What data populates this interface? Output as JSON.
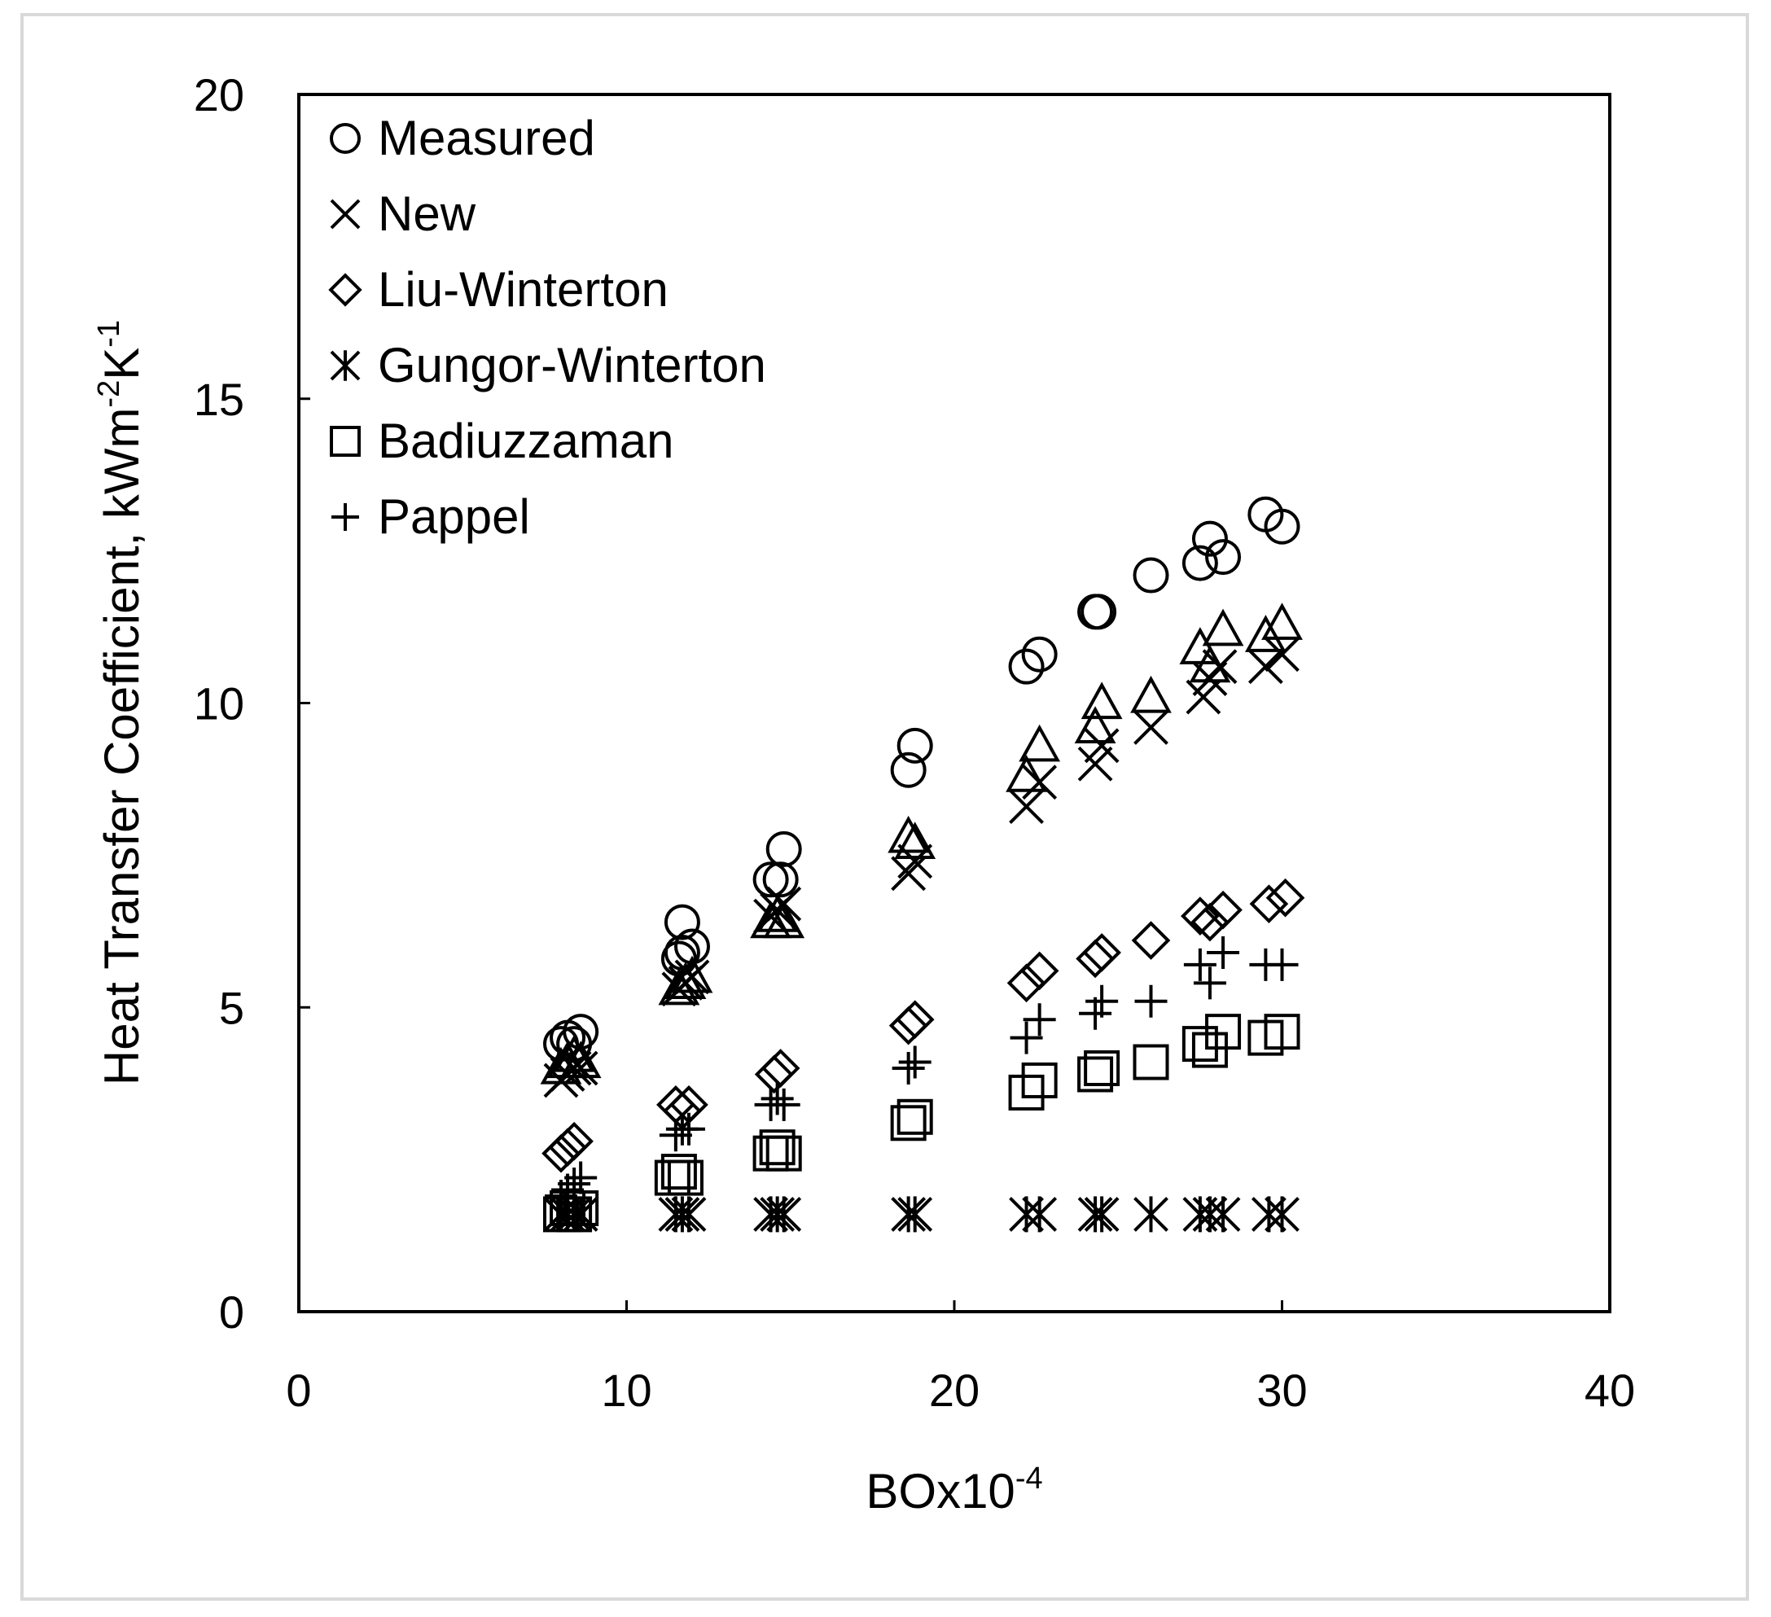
{
  "chart_data": {
    "type": "scatter",
    "title": "",
    "xlabel": "BOx10",
    "xlabel_sup": "-4",
    "ylabel": "Heat Transfer Coefficient, kWm",
    "ylabel_sup1": "-2",
    "ylabel_mid": "K",
    "ylabel_sup2": "-1",
    "xlim": [
      0,
      40
    ],
    "ylim": [
      0,
      20
    ],
    "xticks": [
      0,
      10,
      20,
      30,
      40
    ],
    "yticks": [
      0,
      5,
      10,
      15,
      20
    ],
    "grid": false,
    "legend_position": "top-left",
    "series": [
      {
        "name": "Measured",
        "marker": "circle",
        "points": [
          [
            8.0,
            4.4
          ],
          [
            8.2,
            4.5
          ],
          [
            8.4,
            4.4
          ],
          [
            8.6,
            4.6
          ],
          [
            11.6,
            5.8
          ],
          [
            11.7,
            5.9
          ],
          [
            11.7,
            6.4
          ],
          [
            12.0,
            6.0
          ],
          [
            14.4,
            7.1
          ],
          [
            14.7,
            7.1
          ],
          [
            14.8,
            7.6
          ],
          [
            18.6,
            8.9
          ],
          [
            18.8,
            9.3
          ],
          [
            22.2,
            10.6
          ],
          [
            22.6,
            10.8
          ],
          [
            24.3,
            11.5
          ],
          [
            24.4,
            11.5
          ],
          [
            26.0,
            12.1
          ],
          [
            27.5,
            12.3
          ],
          [
            27.8,
            12.7
          ],
          [
            28.2,
            12.4
          ],
          [
            29.5,
            13.1
          ],
          [
            30.0,
            12.9
          ]
        ]
      },
      {
        "name": "New",
        "marker": "x",
        "points": [
          [
            8.0,
            3.8
          ],
          [
            8.2,
            3.9
          ],
          [
            8.4,
            4.0
          ],
          [
            8.6,
            4.0
          ],
          [
            11.6,
            5.3
          ],
          [
            11.8,
            5.4
          ],
          [
            12.0,
            5.5
          ],
          [
            14.4,
            6.5
          ],
          [
            14.6,
            6.6
          ],
          [
            14.8,
            6.7
          ],
          [
            18.6,
            7.2
          ],
          [
            18.8,
            7.4
          ],
          [
            22.2,
            8.3
          ],
          [
            22.6,
            8.7
          ],
          [
            24.3,
            9.0
          ],
          [
            24.5,
            9.3
          ],
          [
            26.0,
            9.6
          ],
          [
            27.6,
            10.1
          ],
          [
            27.8,
            10.4
          ],
          [
            28.1,
            10.6
          ],
          [
            29.5,
            10.6
          ],
          [
            30.0,
            10.8
          ]
        ]
      },
      {
        "name": "",
        "marker": "triangle",
        "points": [
          [
            8.0,
            4.0
          ],
          [
            8.2,
            4.1
          ],
          [
            8.4,
            4.2
          ],
          [
            8.6,
            4.1
          ],
          [
            11.6,
            5.3
          ],
          [
            11.8,
            5.4
          ],
          [
            12.0,
            5.5
          ],
          [
            14.4,
            6.4
          ],
          [
            14.6,
            6.5
          ],
          [
            14.8,
            6.4
          ],
          [
            18.6,
            7.8
          ],
          [
            18.8,
            7.7
          ],
          [
            22.2,
            8.8
          ],
          [
            22.6,
            9.3
          ],
          [
            24.3,
            9.6
          ],
          [
            24.5,
            10.0
          ],
          [
            26.0,
            10.1
          ],
          [
            27.5,
            10.9
          ],
          [
            27.8,
            10.6
          ],
          [
            28.2,
            11.2
          ],
          [
            29.5,
            11.1
          ],
          [
            30.0,
            11.3
          ]
        ]
      },
      {
        "name": "Liu-Winterton",
        "marker": "diamond",
        "points": [
          [
            8.0,
            2.6
          ],
          [
            8.2,
            2.7
          ],
          [
            8.4,
            2.8
          ],
          [
            11.5,
            3.4
          ],
          [
            11.7,
            3.3
          ],
          [
            11.9,
            3.4
          ],
          [
            14.5,
            3.9
          ],
          [
            14.7,
            4.0
          ],
          [
            18.6,
            4.7
          ],
          [
            18.8,
            4.8
          ],
          [
            22.2,
            5.4
          ],
          [
            22.6,
            5.6
          ],
          [
            24.3,
            5.8
          ],
          [
            24.5,
            5.9
          ],
          [
            26.0,
            6.1
          ],
          [
            27.5,
            6.5
          ],
          [
            27.8,
            6.4
          ],
          [
            28.2,
            6.6
          ],
          [
            29.6,
            6.7
          ],
          [
            30.1,
            6.8
          ]
        ]
      },
      {
        "name": "Gungor-Winterton",
        "marker": "asterisk",
        "points": [
          [
            8.0,
            1.6
          ],
          [
            8.2,
            1.6
          ],
          [
            8.4,
            1.6
          ],
          [
            8.6,
            1.6
          ],
          [
            11.5,
            1.6
          ],
          [
            11.7,
            1.6
          ],
          [
            11.9,
            1.6
          ],
          [
            14.4,
            1.6
          ],
          [
            14.6,
            1.6
          ],
          [
            14.8,
            1.6
          ],
          [
            18.6,
            1.6
          ],
          [
            18.8,
            1.6
          ],
          [
            22.2,
            1.6
          ],
          [
            22.6,
            1.6
          ],
          [
            24.3,
            1.6
          ],
          [
            24.5,
            1.6
          ],
          [
            26.0,
            1.6
          ],
          [
            27.5,
            1.6
          ],
          [
            27.8,
            1.6
          ],
          [
            28.2,
            1.6
          ],
          [
            29.6,
            1.6
          ],
          [
            30.0,
            1.6
          ]
        ]
      },
      {
        "name": "Badiuzzaman",
        "marker": "square",
        "points": [
          [
            8.0,
            1.6
          ],
          [
            8.2,
            1.7
          ],
          [
            8.4,
            1.6
          ],
          [
            8.6,
            1.7
          ],
          [
            11.4,
            2.2
          ],
          [
            11.6,
            2.3
          ],
          [
            11.8,
            2.2
          ],
          [
            14.4,
            2.6
          ],
          [
            14.6,
            2.7
          ],
          [
            14.8,
            2.6
          ],
          [
            18.6,
            3.1
          ],
          [
            18.8,
            3.2
          ],
          [
            22.2,
            3.6
          ],
          [
            22.6,
            3.8
          ],
          [
            24.3,
            3.9
          ],
          [
            24.5,
            4.0
          ],
          [
            26.0,
            4.1
          ],
          [
            27.5,
            4.4
          ],
          [
            27.8,
            4.3
          ],
          [
            28.2,
            4.6
          ],
          [
            29.5,
            4.5
          ],
          [
            30.0,
            4.6
          ]
        ]
      },
      {
        "name": "Pappel",
        "marker": "plus",
        "points": [
          [
            8.0,
            1.9
          ],
          [
            8.2,
            2.0
          ],
          [
            8.4,
            2.1
          ],
          [
            8.6,
            2.2
          ],
          [
            11.5,
            2.9
          ],
          [
            11.7,
            3.0
          ],
          [
            11.9,
            3.0
          ],
          [
            14.4,
            3.4
          ],
          [
            14.6,
            3.5
          ],
          [
            14.8,
            3.4
          ],
          [
            18.6,
            4.0
          ],
          [
            18.8,
            4.1
          ],
          [
            22.2,
            4.5
          ],
          [
            22.6,
            4.8
          ],
          [
            24.3,
            4.9
          ],
          [
            24.5,
            5.1
          ],
          [
            26.0,
            5.1
          ],
          [
            27.5,
            5.7
          ],
          [
            27.8,
            5.4
          ],
          [
            28.2,
            5.9
          ],
          [
            29.5,
            5.7
          ],
          [
            30.0,
            5.7
          ]
        ]
      }
    ]
  }
}
